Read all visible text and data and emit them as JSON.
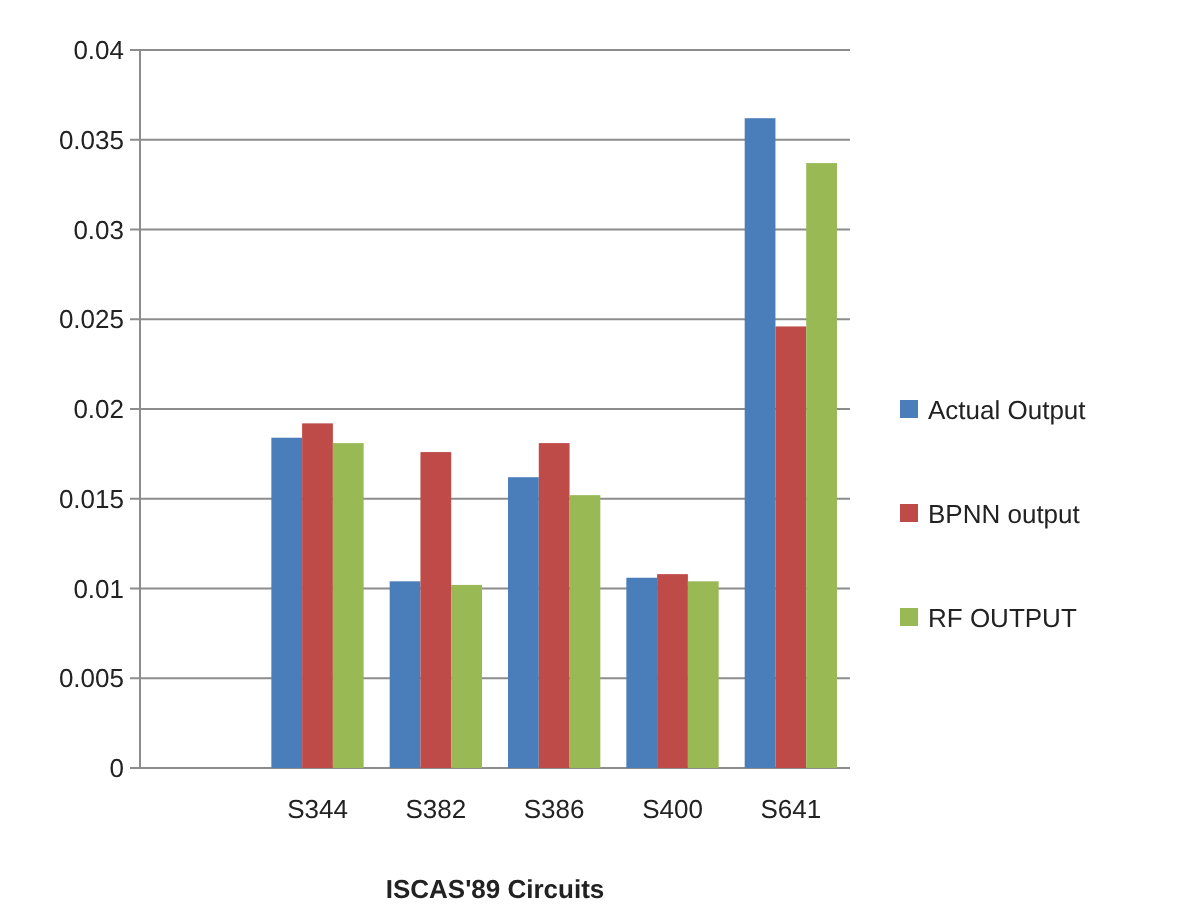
{
  "chart_data": {
    "type": "bar",
    "xlabel": "ISCAS'89 Circuits",
    "categories": [
      null,
      "S344",
      "S382",
      "S386",
      "S400",
      "S641"
    ],
    "series": [
      {
        "name": "Actual Output",
        "color": "#4a7ebb",
        "values": [
          null,
          0.0184,
          0.0104,
          0.0162,
          0.0106,
          0.0362
        ]
      },
      {
        "name": "BPNN output",
        "color": "#be4b48",
        "values": [
          null,
          0.0192,
          0.0176,
          0.0181,
          0.0108,
          0.0246
        ]
      },
      {
        "name": "RF OUTPUT",
        "color": "#98b954",
        "values": [
          null,
          0.0181,
          0.0102,
          0.0152,
          0.0104,
          0.0337
        ]
      }
    ],
    "ylim": [
      0,
      0.04
    ],
    "yticks": [
      0,
      0.005,
      0.01,
      0.015,
      0.02,
      0.025,
      0.03,
      0.035,
      0.04
    ],
    "grid": "y",
    "legend": "right"
  }
}
